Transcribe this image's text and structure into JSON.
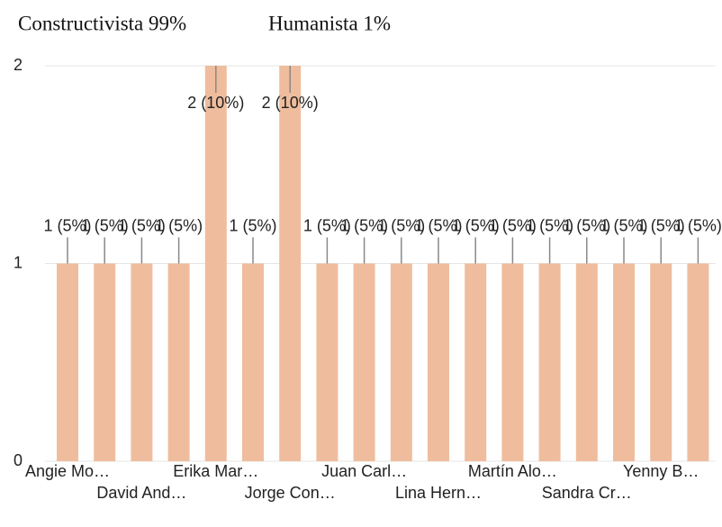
{
  "header": {
    "items": [
      "Constructivista 99%",
      "Humanista 1%"
    ]
  },
  "chart_data": {
    "type": "bar",
    "categories": [
      "Angie Mo…",
      null,
      "David And…",
      null,
      "Erika Mar…",
      null,
      "Jorge Con…",
      null,
      "Juan Carl…",
      null,
      "Lina Hern…",
      null,
      "Martín Alo…",
      null,
      "Sandra Cr…",
      null,
      "Yenny B…",
      null
    ],
    "values": [
      1,
      1,
      1,
      1,
      2,
      1,
      2,
      1,
      1,
      1,
      1,
      1,
      1,
      1,
      1,
      1,
      1,
      1
    ],
    "value_labels": [
      "1 (5%)",
      "1 (5%)",
      "1 (5%)",
      "1 (5%)",
      "2 (10%)",
      "1 (5%)",
      "2 (10%)",
      "1 (5%)",
      "1 (5%)",
      "1 (5%)",
      "1 (5%)",
      "1 (5%)",
      "1 (5%)",
      "1 (5%)",
      "1 (5%)",
      "1 (5%)",
      "1 (5%)",
      "1 (5%)"
    ],
    "color": "#efbd9d",
    "ylim": [
      0,
      2
    ],
    "yticks": [
      0,
      1,
      2
    ],
    "grid": true
  }
}
